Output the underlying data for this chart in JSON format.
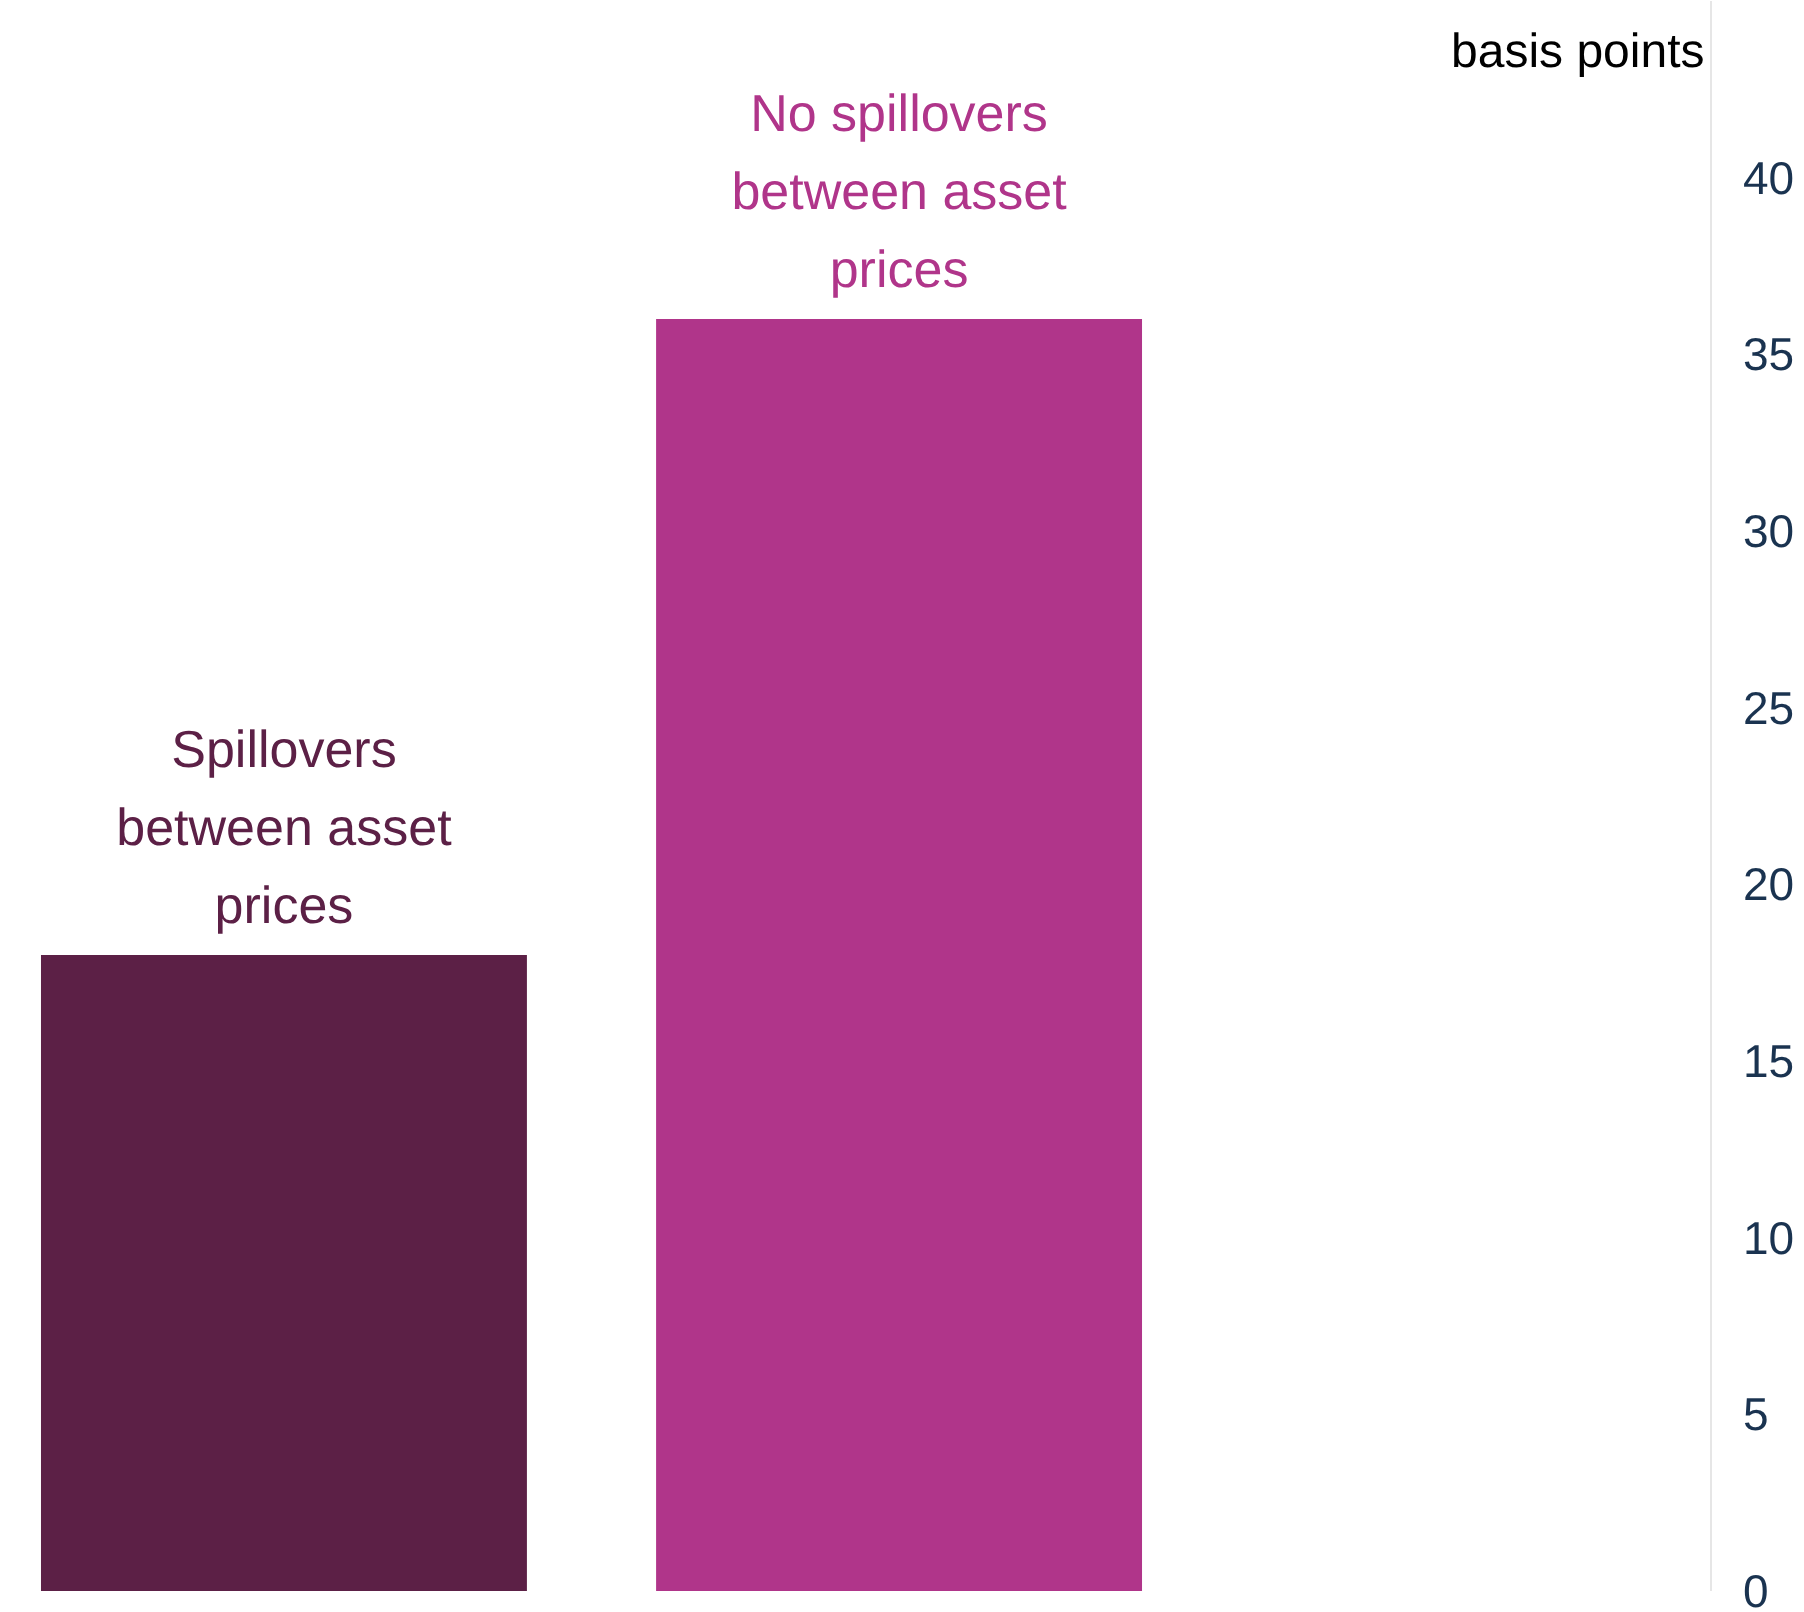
{
  "chart_data": {
    "type": "bar",
    "ylabel": "basis points",
    "categories": [
      "Spillovers between asset prices",
      "No spillovers between asset prices"
    ],
    "values": [
      18,
      36
    ],
    "colors": [
      "#5c2046",
      "#b0358a"
    ],
    "ylim": [
      0,
      45
    ],
    "yticks": [
      0,
      5,
      10,
      15,
      20,
      25,
      30,
      35,
      40
    ],
    "grid": false
  }
}
